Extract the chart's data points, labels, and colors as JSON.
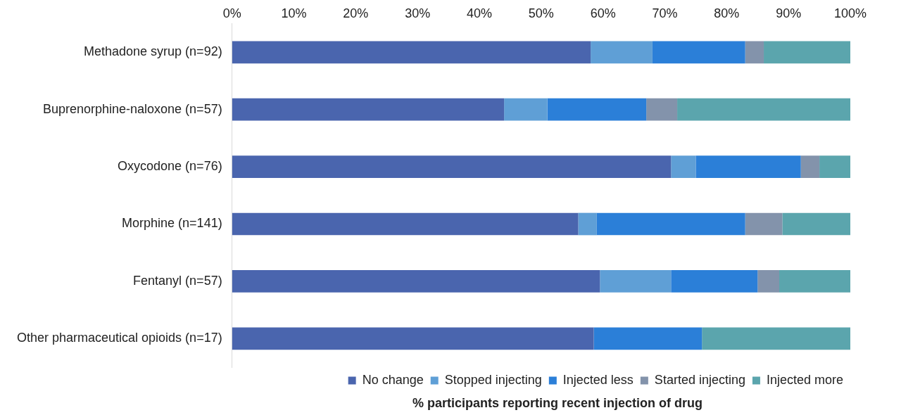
{
  "chart_data": {
    "type": "bar",
    "orientation": "horizontal",
    "stacked": true,
    "xlabel": "% participants reporting recent injection of drug",
    "categories": [
      "Methadone syrup (n=92)",
      "Buprenorphine-naloxone (n=57)",
      "Oxycodone (n=76)",
      "Morphine (n=141)",
      "Fentanyl (n=57)",
      "Other pharmaceutical opioids (n=17)"
    ],
    "series": [
      {
        "name": "No change",
        "color": "#4a65ae",
        "values": [
          58,
          44,
          71,
          56,
          59.5,
          58.5
        ]
      },
      {
        "name": "Stopped injecting",
        "color": "#5f9fd6",
        "values": [
          10,
          7,
          4,
          3,
          11.5,
          0
        ]
      },
      {
        "name": "Injected less",
        "color": "#2b7fd8",
        "values": [
          15,
          16,
          17,
          24,
          14,
          17.5
        ]
      },
      {
        "name": "Started injecting",
        "color": "#8393ab",
        "values": [
          3,
          5,
          3,
          6,
          3.5,
          0
        ]
      },
      {
        "name": "Injected more",
        "color": "#5ba5ad",
        "values": [
          14,
          28,
          5,
          11,
          11.5,
          24
        ]
      }
    ],
    "xlim": [
      0,
      100
    ],
    "xticks": [
      {
        "value": 0,
        "label": "0%"
      },
      {
        "value": 10,
        "label": "10%"
      },
      {
        "value": 20,
        "label": "20%"
      },
      {
        "value": 30,
        "label": "30%"
      },
      {
        "value": 40,
        "label": "40%"
      },
      {
        "value": 50,
        "label": "50%"
      },
      {
        "value": 60,
        "label": "60%"
      },
      {
        "value": 70,
        "label": "70%"
      },
      {
        "value": 80,
        "label": "80%"
      },
      {
        "value": 90,
        "label": "90%"
      },
      {
        "value": 100,
        "label": "100%"
      }
    ],
    "grid": false,
    "legend": "bottom"
  }
}
